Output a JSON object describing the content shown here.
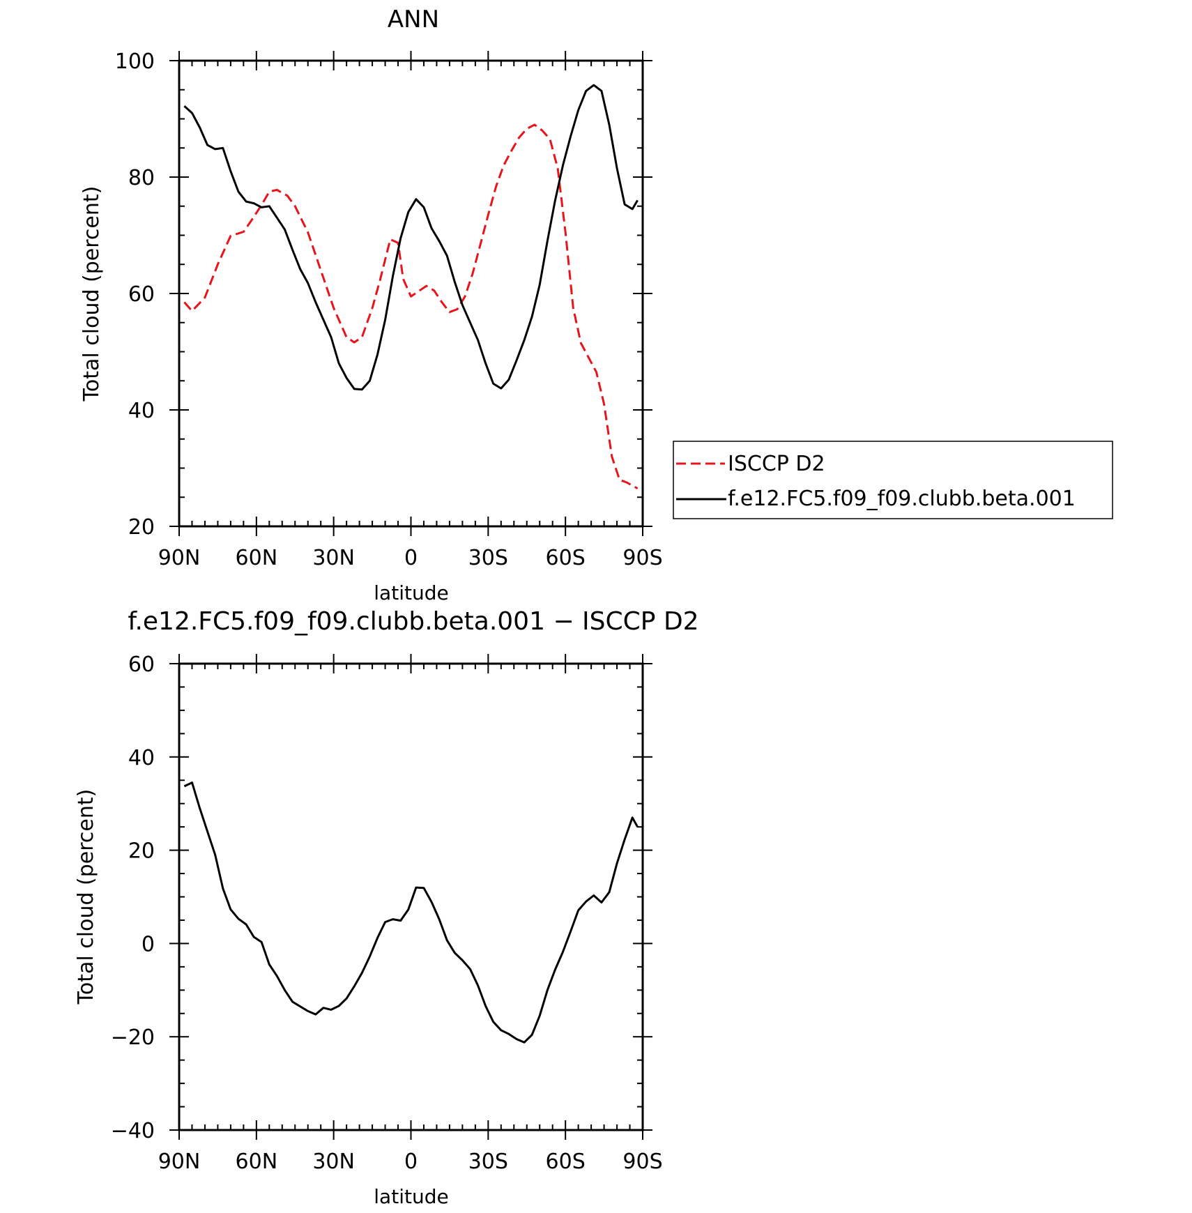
{
  "chart_data": [
    {
      "type": "line",
      "title": "ANN",
      "xlabel": "latitude",
      "ylabel": "Total cloud (percent)",
      "xlim": [
        90,
        -90
      ],
      "ylim": [
        20,
        100
      ],
      "x_ticks": [
        90,
        60,
        30,
        0,
        -30,
        -60,
        -90
      ],
      "x_tick_labels": [
        "90N",
        "60N",
        "30N",
        "0",
        "30S",
        "60S",
        "90S"
      ],
      "y_ticks": [
        20,
        40,
        60,
        80,
        100
      ],
      "y_tick_labels": [
        "20",
        "40",
        "60",
        "80",
        "100"
      ],
      "legend_position": "right",
      "series": [
        {
          "name": "ISCCP D2",
          "color": "#e8141c",
          "dash": "dashed",
          "x": [
            88,
            85,
            80,
            75,
            70,
            65,
            62,
            58,
            55,
            52,
            48,
            45,
            40,
            35,
            30,
            25,
            22,
            19,
            15,
            12,
            8,
            5,
            3,
            0,
            -3,
            -6,
            -9,
            -12,
            -15,
            -18,
            -21,
            -24,
            -27,
            -30,
            -33,
            -36,
            -39,
            -42,
            -45,
            -48,
            -51,
            -54,
            -57,
            -60,
            -63,
            -66,
            -69,
            -72,
            -75,
            -78,
            -81,
            -84,
            -86,
            -88
          ],
          "values": [
            58.5,
            57.0,
            59.3,
            65.0,
            69.9,
            70.6,
            72.5,
            75.2,
            77.5,
            77.8,
            76.8,
            75.0,
            70.5,
            64.0,
            57.5,
            52.5,
            51.6,
            52.5,
            57.5,
            62.3,
            69.3,
            68.7,
            62.5,
            59.5,
            60.4,
            61.3,
            60.5,
            58.5,
            56.8,
            57.3,
            59.5,
            63.5,
            68.5,
            73.5,
            78.3,
            82.0,
            84.5,
            86.8,
            88.3,
            89.0,
            88.0,
            86.5,
            81.5,
            70.5,
            57.5,
            51.5,
            49.0,
            46.5,
            41.0,
            32.0,
            28.0,
            27.5,
            27.0,
            26.5
          ]
        },
        {
          "name": "f.e12.FC5.f09_f09.clubb.beta.001",
          "color": "#000000",
          "dash": "solid",
          "x": [
            88,
            85,
            82,
            79,
            76,
            73,
            70,
            67,
            64,
            61,
            58,
            55,
            52,
            49,
            46,
            43,
            40,
            37,
            34,
            31,
            28,
            25,
            22,
            19,
            16,
            13,
            10,
            7,
            4,
            1,
            -2,
            -5,
            -8,
            -11,
            -14,
            -17,
            -20,
            -23,
            -26,
            -29,
            -32,
            -35,
            -38,
            -41,
            -44,
            -47,
            -50,
            -53,
            -56,
            -59,
            -62,
            -65,
            -68,
            -71,
            -74,
            -77,
            -80,
            -83,
            -86,
            -88
          ],
          "values": [
            92.2,
            91.0,
            88.5,
            85.5,
            84.8,
            85.0,
            81.0,
            77.5,
            75.8,
            75.5,
            74.8,
            75.0,
            73.0,
            71.0,
            67.5,
            64.2,
            61.8,
            58.5,
            55.5,
            52.5,
            48.0,
            45.5,
            43.6,
            43.5,
            45.0,
            49.5,
            55.5,
            63.0,
            69.5,
            74.0,
            76.2,
            74.8,
            71.2,
            69.0,
            66.5,
            62.0,
            58.0,
            55.0,
            52.0,
            48.0,
            44.5,
            43.7,
            45.2,
            48.5,
            52.0,
            56.0,
            61.5,
            69.0,
            76.0,
            82.0,
            87.0,
            91.5,
            94.8,
            95.8,
            94.8,
            89.0,
            81.5,
            75.3,
            74.5,
            76.0
          ]
        }
      ]
    },
    {
      "type": "line",
      "title": "f.e12.FC5.f09_f09.clubb.beta.001 − ISCCP D2",
      "xlabel": "latitude",
      "ylabel": "Total cloud (percent)",
      "xlim": [
        90,
        -90
      ],
      "ylim": [
        -40,
        60
      ],
      "x_ticks": [
        90,
        60,
        30,
        0,
        -30,
        -60,
        -90
      ],
      "x_tick_labels": [
        "90N",
        "60N",
        "30N",
        "0",
        "30S",
        "60S",
        "90S"
      ],
      "y_ticks": [
        -40,
        -20,
        0,
        20,
        40,
        60
      ],
      "y_tick_labels": [
        "−40",
        "−20",
        "0",
        "20",
        "40",
        "60"
      ],
      "series": [
        {
          "color": "#000000",
          "dash": "solid",
          "x": [
            88,
            85,
            82,
            79,
            76,
            73,
            70,
            67,
            64,
            61,
            58,
            55,
            52,
            49,
            46,
            43,
            40,
            37,
            34,
            31,
            28,
            25,
            22,
            19,
            16,
            13,
            10,
            7,
            4,
            1,
            -2,
            -5,
            -8,
            -11,
            -14,
            -17,
            -20,
            -23,
            -26,
            -29,
            -32,
            -35,
            -38,
            -41,
            -44,
            -47,
            -50,
            -53,
            -56,
            -59,
            -62,
            -65,
            -68,
            -71,
            -74,
            -77,
            -80,
            -83,
            -86,
            -88
          ],
          "values": [
            33.7,
            34.5,
            29.0,
            24.0,
            19.0,
            11.8,
            7.3,
            5.3,
            4.1,
            1.4,
            0.3,
            -4.5,
            -7.0,
            -10.0,
            -12.5,
            -13.5,
            -14.5,
            -15.2,
            -13.8,
            -14.2,
            -13.4,
            -11.8,
            -9.2,
            -6.3,
            -2.8,
            1.2,
            4.6,
            5.2,
            4.9,
            7.3,
            12.0,
            11.9,
            8.9,
            5.2,
            0.7,
            -2.0,
            -3.6,
            -5.5,
            -9.0,
            -13.4,
            -16.8,
            -18.6,
            -19.4,
            -20.5,
            -21.2,
            -19.6,
            -15.5,
            -10.0,
            -5.6,
            -1.8,
            2.6,
            7.1,
            9.0,
            10.3,
            8.8,
            11.0,
            17.2,
            22.3,
            27.0,
            25.0
          ]
        }
      ]
    }
  ],
  "legend": {
    "entries": [
      "ISCCP D2",
      "f.e12.FC5.f09_f09.clubb.beta.001"
    ]
  }
}
